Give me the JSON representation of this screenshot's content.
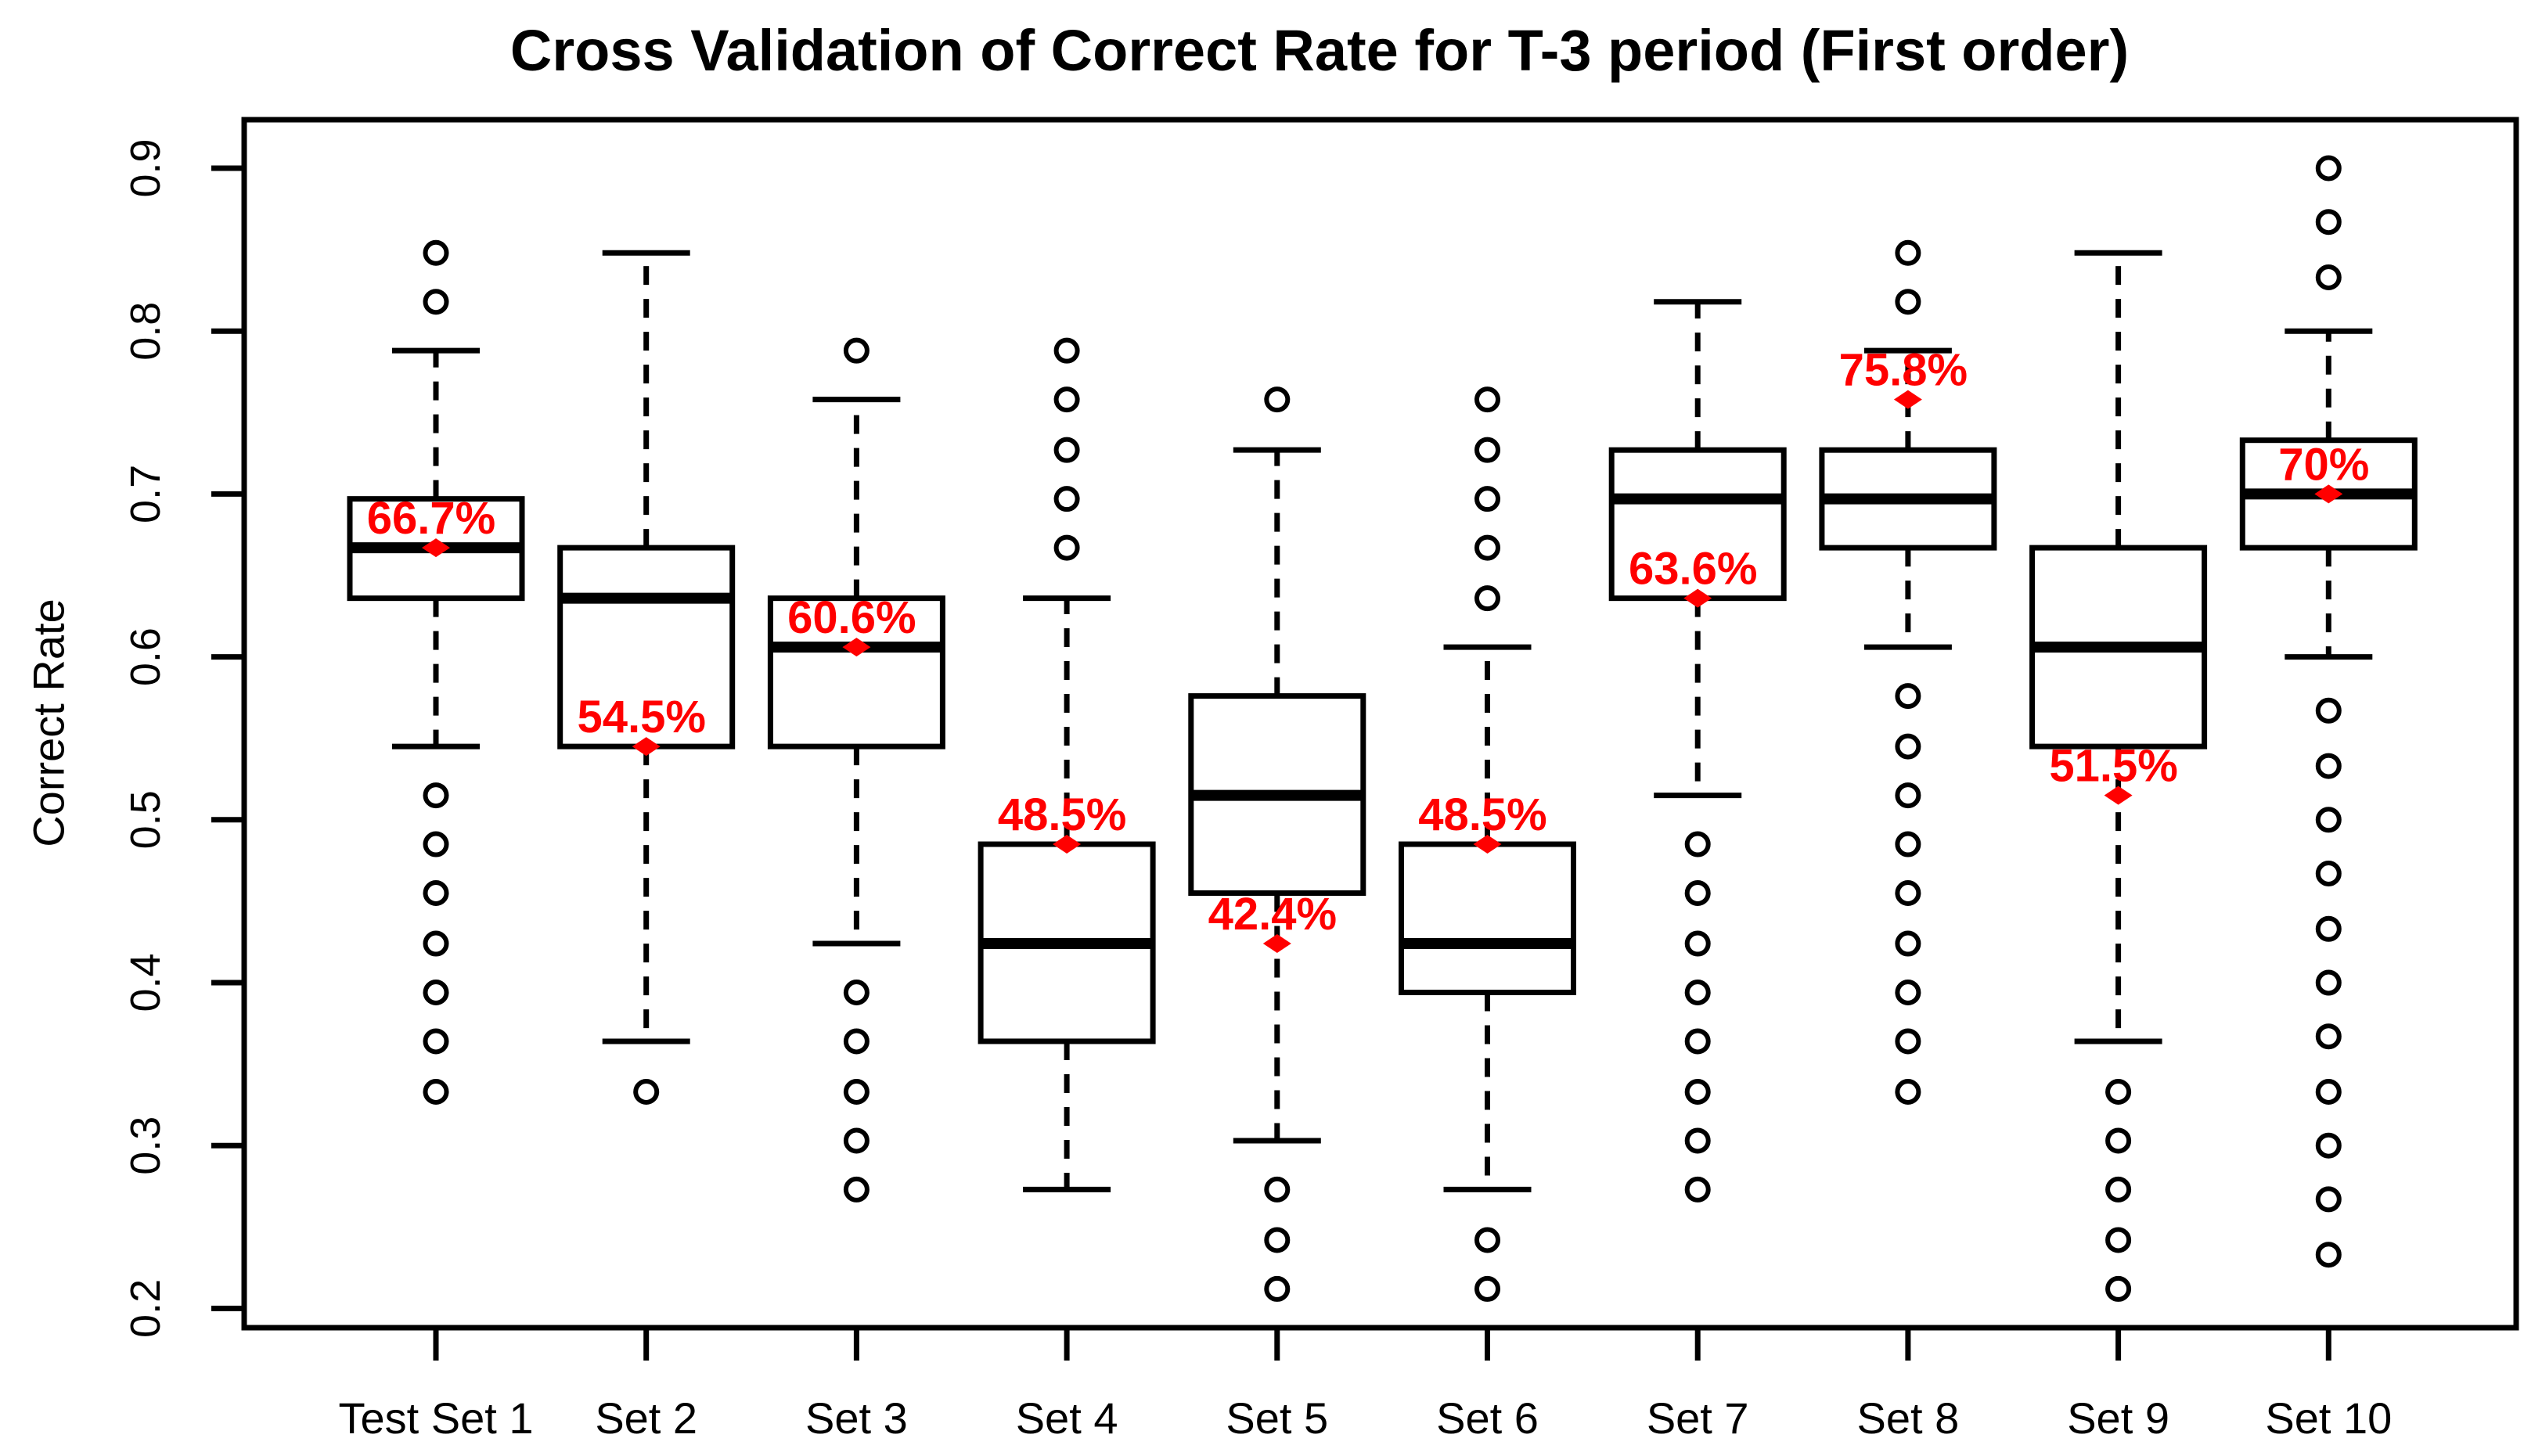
{
  "chart_data": {
    "type": "boxplot",
    "title": "Cross Validation of Correct Rate for T-3 period (First order)",
    "xlabel": "",
    "ylabel": "Correct Rate",
    "ylim": [
      0.188,
      0.93
    ],
    "grid": false,
    "y_ticks": [
      {
        "value": 0.2,
        "label": "0.2"
      },
      {
        "value": 0.3,
        "label": "0.3"
      },
      {
        "value": 0.4,
        "label": "0.4"
      },
      {
        "value": 0.5,
        "label": "0.5"
      },
      {
        "value": 0.6,
        "label": "0.6"
      },
      {
        "value": 0.7,
        "label": "0.7"
      },
      {
        "value": 0.8,
        "label": "0.8"
      },
      {
        "value": 0.9,
        "label": "0.9"
      }
    ],
    "categories": [
      "Test Set 1",
      "Set 2",
      "Set 3",
      "Set 4",
      "Set 5",
      "Set 6",
      "Set 7",
      "Set 8",
      "Set 9",
      "Set 10"
    ],
    "colors": {
      "line": "#000000",
      "marker": "#FF0000",
      "background": "#FFFFFF"
    },
    "boxes": [
      {
        "category": "Test Set 1",
        "whisker_low": 0.545,
        "q1": 0.636,
        "median": 0.667,
        "q3": 0.697,
        "whisker_high": 0.788,
        "outliers_below": [
          0.515,
          0.485,
          0.455,
          0.424,
          0.394,
          0.364,
          0.333
        ],
        "outliers_above": [
          0.818,
          0.848
        ],
        "marker": {
          "value": 0.667,
          "label": "66.7%"
        }
      },
      {
        "category": "Set 2",
        "whisker_low": 0.364,
        "q1": 0.545,
        "median": 0.636,
        "q3": 0.667,
        "whisker_high": 0.848,
        "outliers_below": [
          0.333
        ],
        "outliers_above": [],
        "marker": {
          "value": 0.545,
          "label": "54.5%"
        }
      },
      {
        "category": "Set 3",
        "whisker_low": 0.424,
        "q1": 0.545,
        "median": 0.606,
        "q3": 0.636,
        "whisker_high": 0.758,
        "outliers_below": [
          0.394,
          0.364,
          0.333,
          0.303,
          0.273
        ],
        "outliers_above": [
          0.788
        ],
        "marker": {
          "value": 0.606,
          "label": "60.6%"
        }
      },
      {
        "category": "Set 4",
        "whisker_low": 0.273,
        "q1": 0.364,
        "median": 0.424,
        "q3": 0.485,
        "whisker_high": 0.636,
        "outliers_below": [],
        "outliers_above": [
          0.667,
          0.697,
          0.727,
          0.758,
          0.788
        ],
        "marker": {
          "value": 0.485,
          "label": "48.5%"
        }
      },
      {
        "category": "Set 5",
        "whisker_low": 0.303,
        "q1": 0.455,
        "median": 0.515,
        "q3": 0.576,
        "whisker_high": 0.727,
        "outliers_below": [
          0.273,
          0.242,
          0.212
        ],
        "outliers_above": [
          0.758
        ],
        "marker": {
          "value": 0.424,
          "label": "42.4%"
        }
      },
      {
        "category": "Set 6",
        "whisker_low": 0.273,
        "q1": 0.394,
        "median": 0.424,
        "q3": 0.485,
        "whisker_high": 0.606,
        "outliers_below": [
          0.242,
          0.212
        ],
        "outliers_above": [
          0.636,
          0.667,
          0.697,
          0.727,
          0.758
        ],
        "marker": {
          "value": 0.485,
          "label": "48.5%"
        }
      },
      {
        "category": "Set 7",
        "whisker_low": 0.515,
        "q1": 0.636,
        "median": 0.697,
        "q3": 0.727,
        "whisker_high": 0.818,
        "outliers_below": [
          0.485,
          0.455,
          0.424,
          0.394,
          0.364,
          0.333,
          0.303,
          0.273
        ],
        "outliers_above": [],
        "marker": {
          "value": 0.636,
          "label": "63.6%"
        }
      },
      {
        "category": "Set 8",
        "whisker_low": 0.606,
        "q1": 0.667,
        "median": 0.697,
        "q3": 0.727,
        "whisker_high": 0.788,
        "outliers_below": [
          0.576,
          0.545,
          0.515,
          0.485,
          0.455,
          0.424,
          0.394,
          0.364,
          0.333
        ],
        "outliers_above": [
          0.818,
          0.848
        ],
        "marker": {
          "value": 0.758,
          "label": "75.8%"
        }
      },
      {
        "category": "Set 9",
        "whisker_low": 0.364,
        "q1": 0.545,
        "median": 0.606,
        "q3": 0.667,
        "whisker_high": 0.848,
        "outliers_below": [
          0.333,
          0.303,
          0.273,
          0.242,
          0.212
        ],
        "outliers_above": [],
        "marker": {
          "value": 0.515,
          "label": "51.5%"
        }
      },
      {
        "category": "Set 10",
        "whisker_low": 0.6,
        "q1": 0.667,
        "median": 0.7,
        "q3": 0.733,
        "whisker_high": 0.8,
        "outliers_below": [
          0.567,
          0.533,
          0.5,
          0.467,
          0.433,
          0.4,
          0.367,
          0.333,
          0.3,
          0.267,
          0.233
        ],
        "outliers_above": [
          0.833,
          0.867,
          0.9
        ],
        "marker": {
          "value": 0.7,
          "label": "70%"
        }
      }
    ]
  }
}
